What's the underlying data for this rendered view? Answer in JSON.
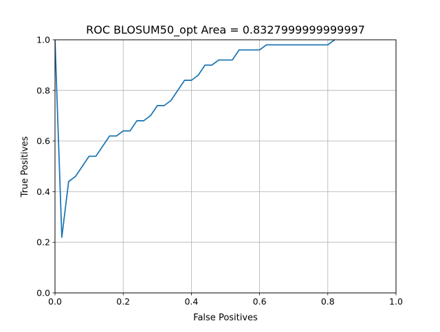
{
  "chart_data": {
    "type": "line",
    "title": "ROC BLOSUM50_opt Area = 0.8327999999999997",
    "xlabel": "False Positives",
    "ylabel": "True Positives",
    "xlim": [
      0,
      1
    ],
    "ylim": [
      0,
      1
    ],
    "xticks": [
      "0.0",
      "0.2",
      "0.4",
      "0.6",
      "0.8",
      "1.0"
    ],
    "yticks": [
      "0.0",
      "0.2",
      "0.4",
      "0.6",
      "0.8",
      "1.0"
    ],
    "grid": true,
    "line_color": "#1f77b4",
    "series": [
      {
        "x": [
          0.0,
          0.02,
          0.04,
          0.06,
          0.08,
          0.1,
          0.12,
          0.14,
          0.16,
          0.18,
          0.2,
          0.22,
          0.24,
          0.26,
          0.28,
          0.3,
          0.32,
          0.34,
          0.36,
          0.38,
          0.4,
          0.42,
          0.44,
          0.46,
          0.48,
          0.5,
          0.52,
          0.54,
          0.56,
          0.58,
          0.6,
          0.62,
          0.64,
          0.8,
          0.82
        ],
        "y": [
          1.0,
          0.22,
          0.44,
          0.46,
          0.5,
          0.54,
          0.54,
          0.58,
          0.62,
          0.62,
          0.64,
          0.64,
          0.68,
          0.68,
          0.7,
          0.74,
          0.74,
          0.76,
          0.8,
          0.84,
          0.84,
          0.86,
          0.9,
          0.9,
          0.92,
          0.92,
          0.92,
          0.96,
          0.96,
          0.96,
          0.96,
          0.98,
          0.98,
          0.98,
          1.0
        ]
      }
    ]
  }
}
